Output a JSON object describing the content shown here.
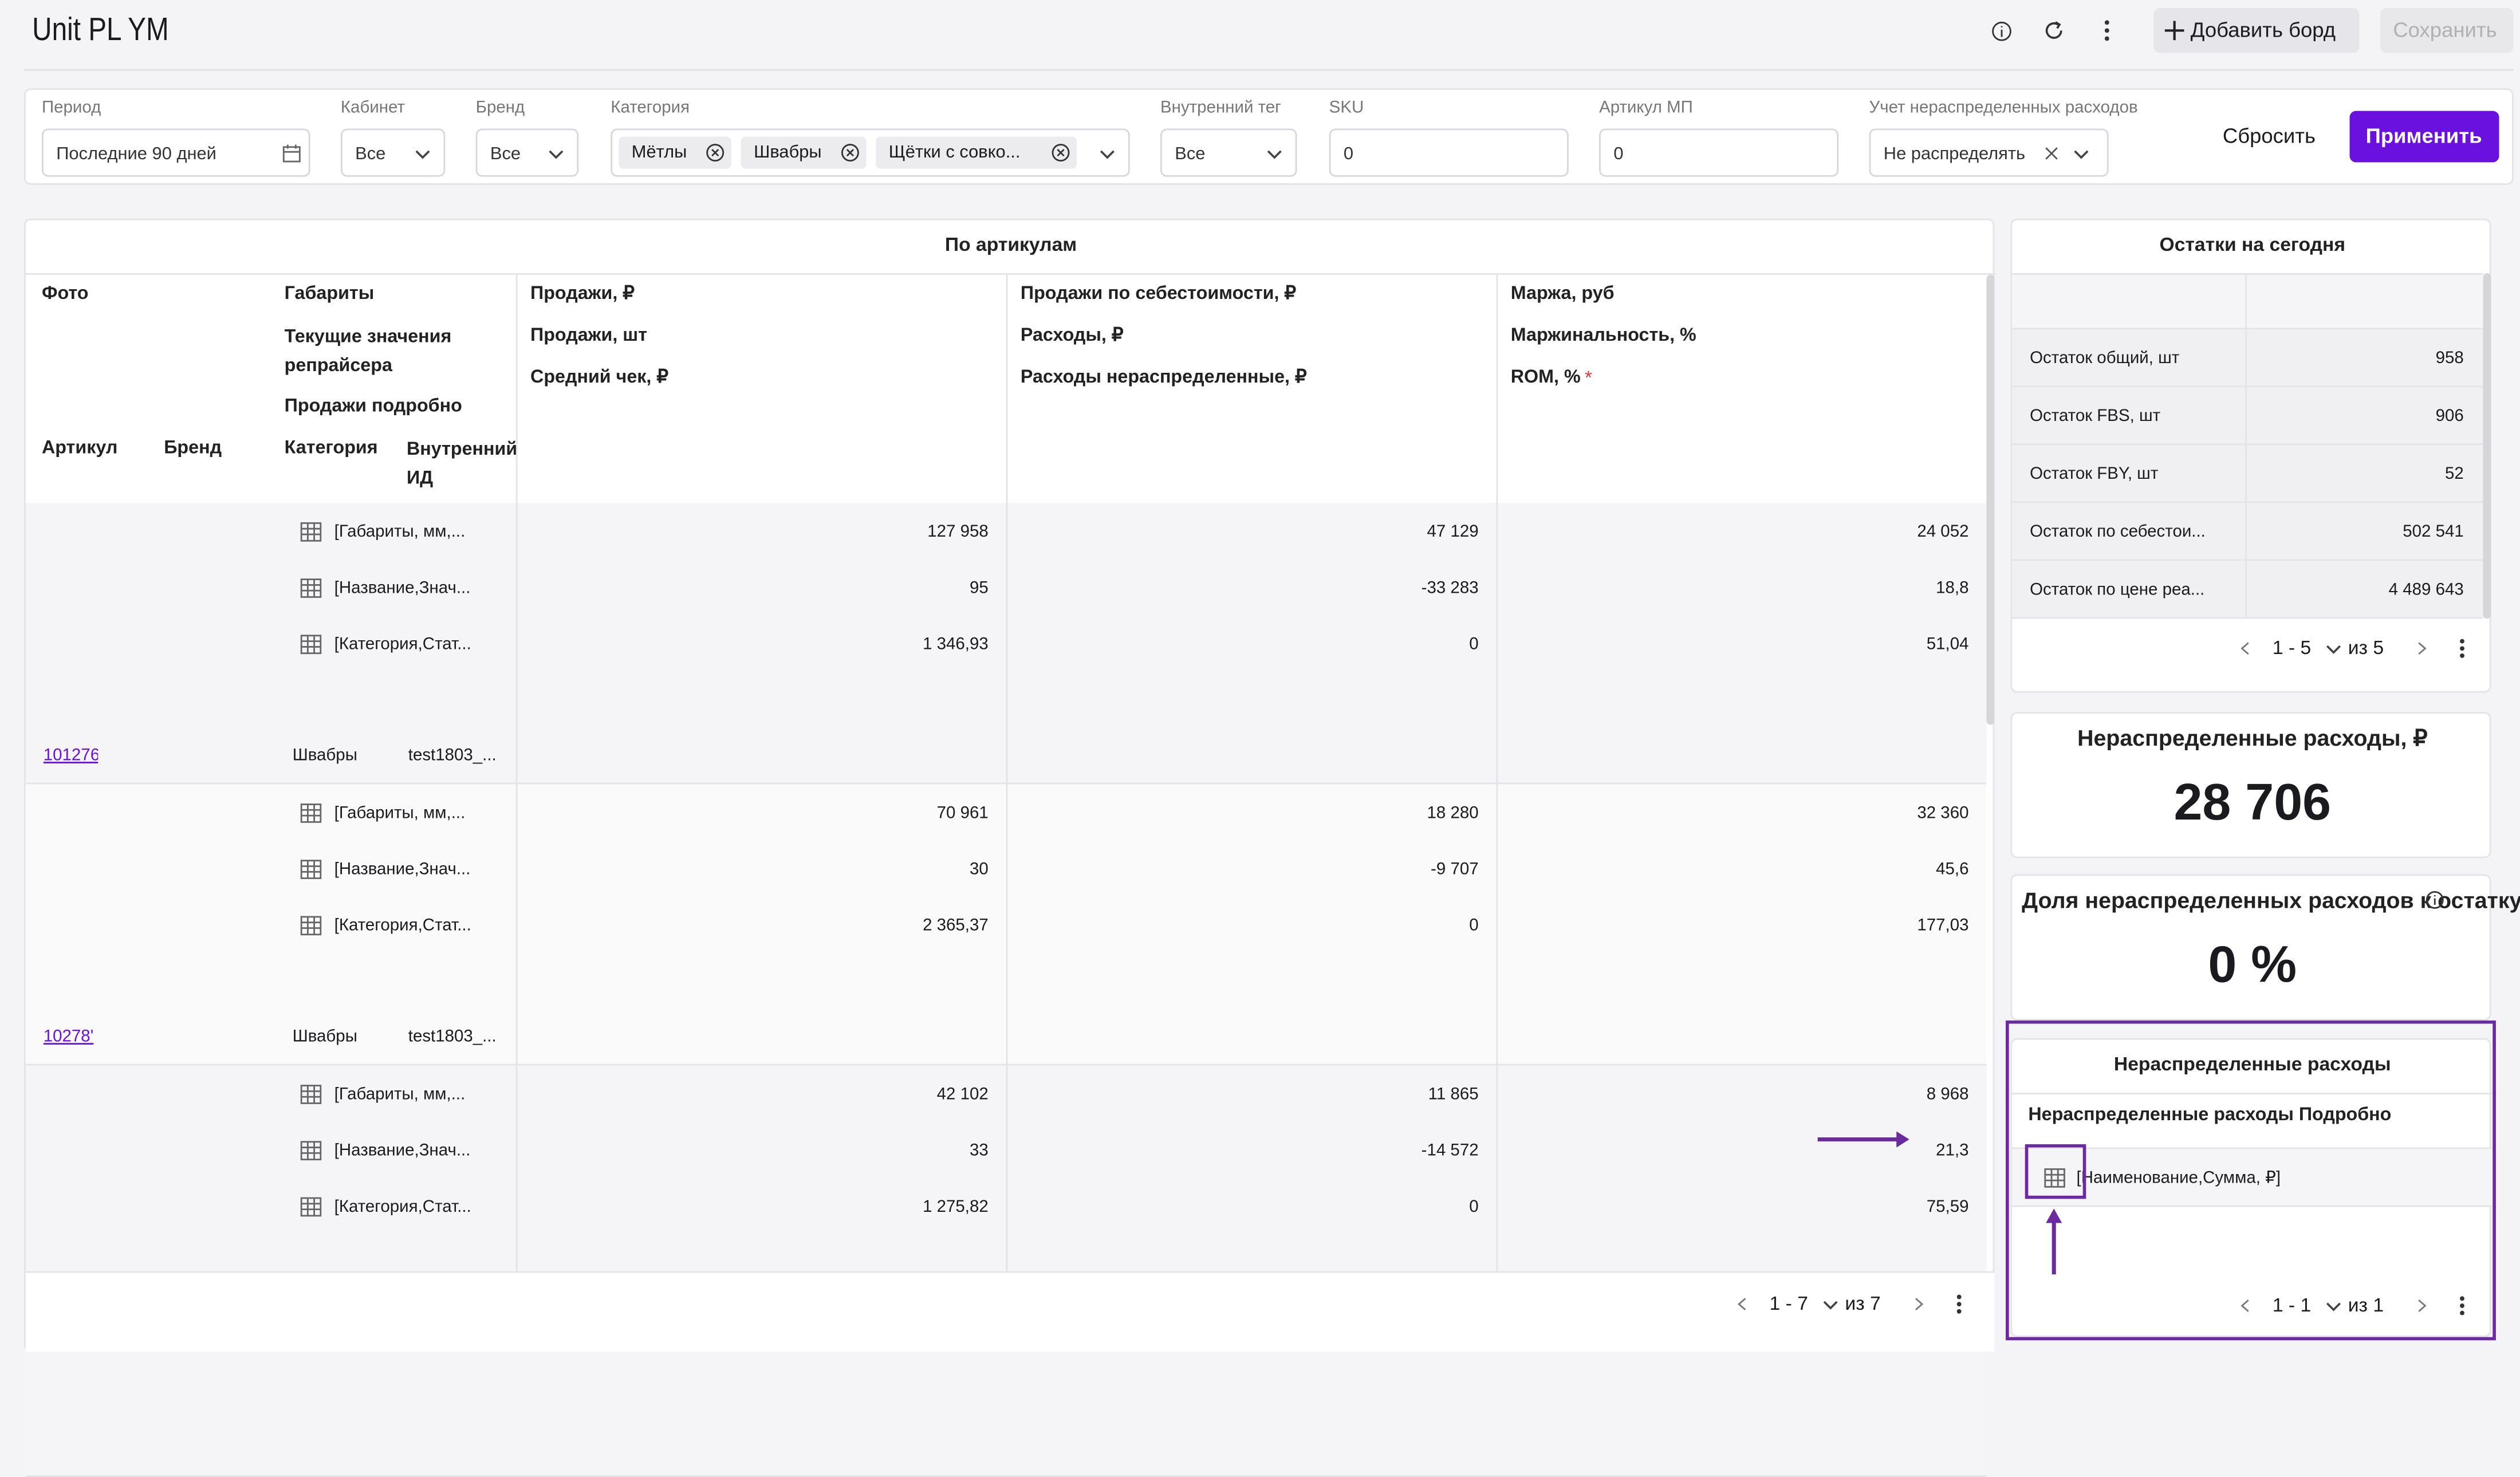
{
  "header": {
    "title": "Unit PL YM",
    "add_board": "Добавить борд",
    "save": "Сохранить"
  },
  "filters": {
    "items": [
      {
        "label": "Период",
        "value": "Последние 90 дней"
      },
      {
        "label": "Кабинет",
        "value": "Все"
      },
      {
        "label": "Бренд",
        "value": "Все"
      },
      {
        "label": "Категория",
        "chips": [
          "Мётлы",
          "Швабры",
          "Щётки с совко..."
        ]
      },
      {
        "label": "Внутренний тег",
        "value": "Все"
      },
      {
        "label": "SKU",
        "value": "0"
      },
      {
        "label": "Артикул МП",
        "value": "0"
      },
      {
        "label": "Учет нераспределенных расходов",
        "value": "Не распределять"
      }
    ],
    "reset": "Сбросить",
    "apply": "Применить"
  },
  "articles_table": {
    "title": "По артикулам",
    "first_column": [
      "Фото",
      "Габариты",
      "Текущие значения репрайсера",
      "Продажи подробно",
      "Артикул",
      "Бренд",
      "Категория",
      "Внутренний ИД"
    ],
    "columns": [
      [
        "Продажи, ₽",
        "Продажи, шт",
        "Средний чек, ₽"
      ],
      [
        "Продажи по себестоимости, ₽",
        "Расходы, ₽",
        "Расходы нераспределенные, ₽"
      ],
      [
        "Маржа, руб",
        "Маржинальность, %",
        "ROM, %"
      ]
    ],
    "required_mark": "*",
    "rows": [
      {
        "article": "101276",
        "category": "Швабры",
        "internal_id": "test1803_...",
        "details": [
          "[Габариты, мм,...",
          "[Название,Знач...",
          "[Категория,Стат..."
        ],
        "cells": [
          [
            "127 958",
            "95",
            "1 346,93"
          ],
          [
            "47 129",
            "-33 283",
            "0"
          ],
          [
            "24 052",
            "18,8",
            "51,04"
          ]
        ]
      },
      {
        "article": "10278'",
        "category": "Швабры",
        "internal_id": "test1803_...",
        "details": [
          "[Габариты, мм,...",
          "[Название,Знач...",
          "[Категория,Стат..."
        ],
        "cells": [
          [
            "70 961",
            "30",
            "2 365,37"
          ],
          [
            "18 280",
            "-9 707",
            "0"
          ],
          [
            "32 360",
            "45,6",
            "177,03"
          ]
        ]
      },
      {
        "details": [
          "[Габариты, мм,...",
          "[Название,Знач...",
          "[Категория,Стат..."
        ],
        "cells": [
          [
            "42 102",
            "33",
            "1 275,82"
          ],
          [
            "11 865",
            "-14 572",
            "0"
          ],
          [
            "8 968",
            "21,3",
            "75,59"
          ]
        ]
      }
    ],
    "pagination": {
      "range": "1 - 7",
      "total": "из 7"
    }
  },
  "stock": {
    "title": "Остатки на сегодня",
    "rows": [
      [
        "Остаток общий, шт",
        "958"
      ],
      [
        "Остаток FBS, шт",
        "906"
      ],
      [
        "Остаток FBY, шт",
        "52"
      ],
      [
        "Остаток по себестои...",
        "502 541"
      ],
      [
        "Остаток по цене реа...",
        "4 489 643"
      ]
    ],
    "pagination": {
      "range": "1 - 5",
      "total": "из 5"
    }
  },
  "kpis": [
    {
      "title": "Нераспределенные расходы, ₽",
      "value": "28 706"
    },
    {
      "title": "Доля нераспределенных расходов к остатку",
      "value": "0 %"
    }
  ],
  "unallocated": {
    "title": "Нераспределенные расходы",
    "column": "Нераспределенные расходы Подробно",
    "rows": [
      "[Наименование,Сумма, ₽]"
    ],
    "pagination": {
      "range": "1 - 1",
      "total": "из 1"
    }
  }
}
